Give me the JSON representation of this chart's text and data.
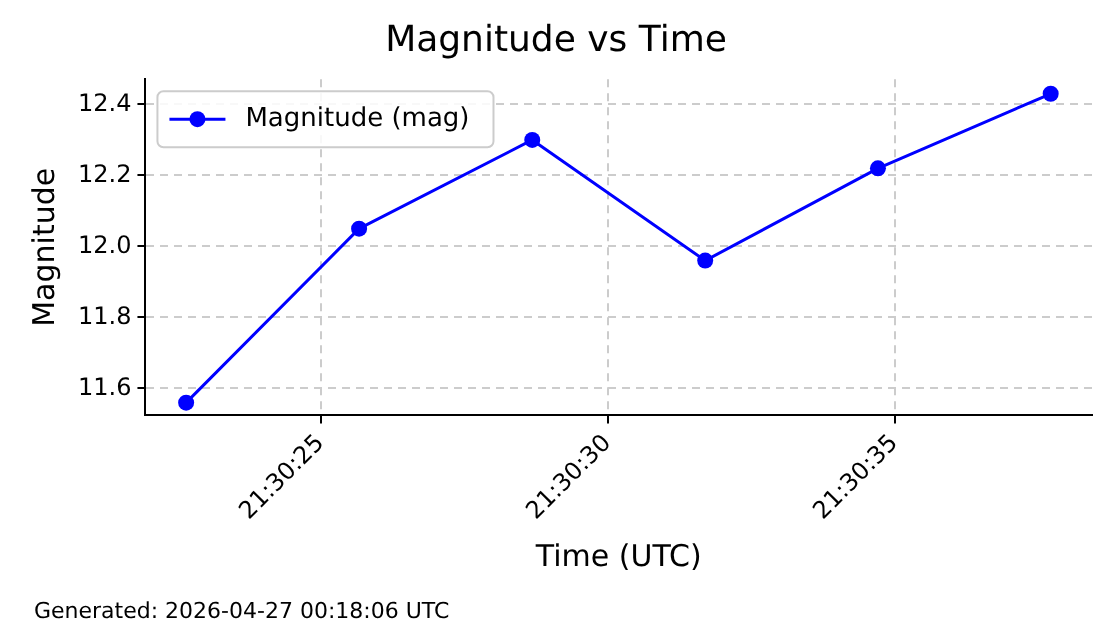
{
  "chart_data": {
    "type": "line",
    "title": "Magnitude vs Time",
    "xlabel": "Time (UTC)",
    "ylabel": "Magnitude",
    "x": [
      21.506294,
      21.507131,
      21.507969,
      21.508806,
      21.509642,
      21.510478
    ],
    "series": [
      {
        "name": "Magnitude (mag)",
        "color": "#0000ff",
        "values": [
          11.56,
          12.05,
          12.3,
          11.96,
          12.22,
          12.43
        ]
      }
    ],
    "xlim": [
      21.506097,
      21.510678
    ],
    "xticks": [
      {
        "value": 21.5069444,
        "label": "21:30:25"
      },
      {
        "value": 21.5083333,
        "label": "21:30:30"
      },
      {
        "value": 21.5097222,
        "label": "21:30:35"
      }
    ],
    "ylim": [
      11.524,
      12.471
    ],
    "yticks": [
      {
        "value": 11.6,
        "label": "11.6"
      },
      {
        "value": 11.8,
        "label": "11.8"
      },
      {
        "value": 12.0,
        "label": "12.0"
      },
      {
        "value": 12.2,
        "label": "12.2"
      },
      {
        "value": 12.4,
        "label": "12.4"
      }
    ],
    "grid": true,
    "legend": "top left",
    "marker": "circle",
    "line_style": "solid",
    "annotations": [
      "Generated: 2026-04-27 00:18:06 UTC"
    ]
  }
}
